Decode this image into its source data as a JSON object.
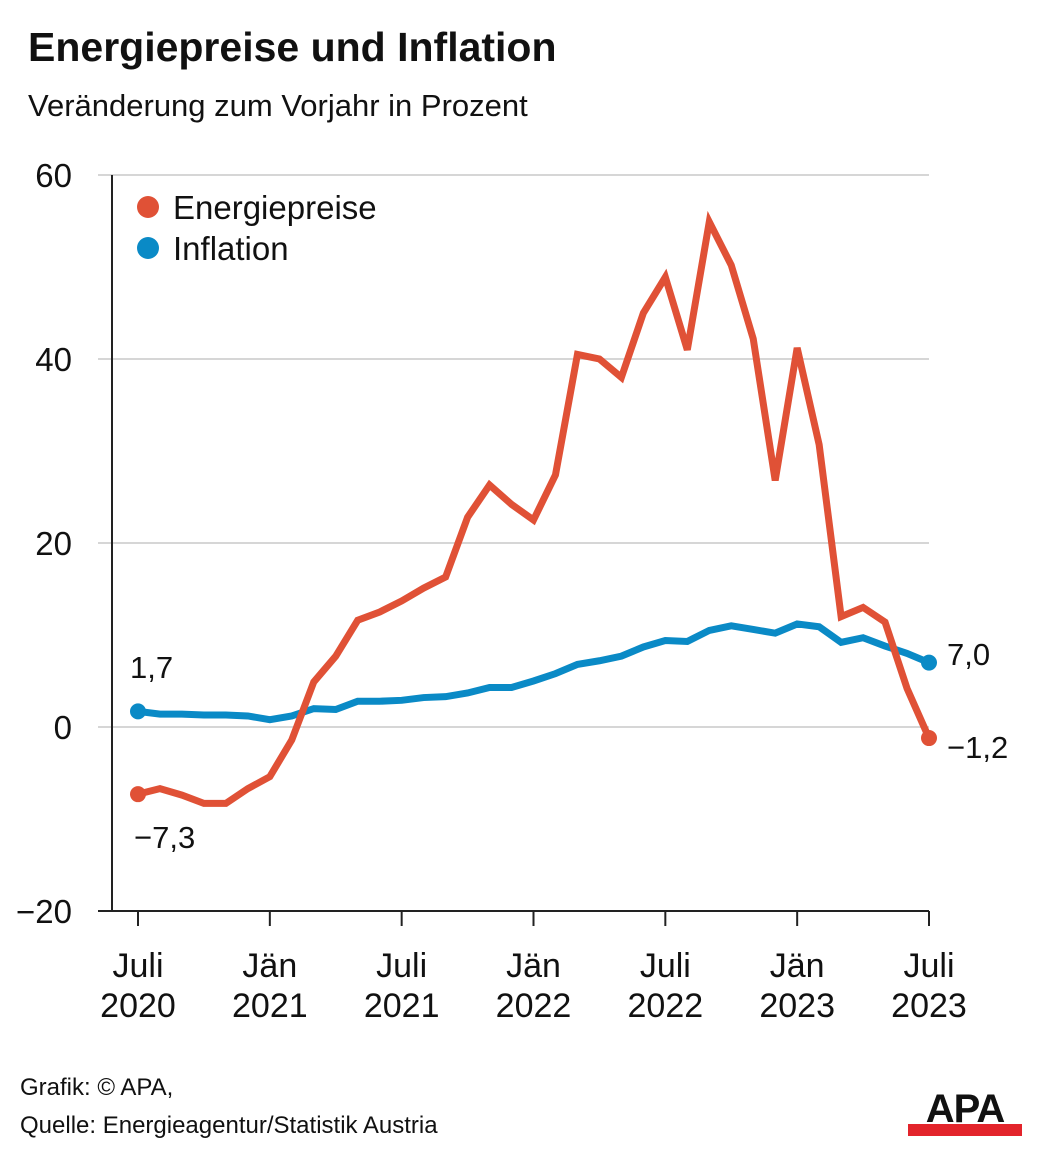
{
  "header": {
    "title": "Energiepreise und Inflation",
    "subtitle": "Veränderung zum Vorjahr in Prozent"
  },
  "footer": {
    "line1": "Grafik: © APA,",
    "line2": "Quelle: Energieagentur/Statistik Austria",
    "logo": "APA"
  },
  "chart_data": {
    "type": "line",
    "title": "Energiepreise und Inflation",
    "subtitle": "Veränderung zum Vorjahr in Prozent",
    "ylim": [
      -20,
      60
    ],
    "yticks": [
      {
        "v": 60,
        "label": "60"
      },
      {
        "v": 40,
        "label": "40"
      },
      {
        "v": 20,
        "label": "20"
      },
      {
        "v": 0,
        "label": "0"
      },
      {
        "v": -20,
        "label": "−20"
      }
    ],
    "xticks": [
      {
        "i": 0,
        "l1": "Juli",
        "l2": "2020"
      },
      {
        "i": 6,
        "l1": "Jän",
        "l2": "2021"
      },
      {
        "i": 12,
        "l1": "Juli",
        "l2": "2021"
      },
      {
        "i": 18,
        "l1": "Jän",
        "l2": "2022"
      },
      {
        "i": 24,
        "l1": "Juli",
        "l2": "2022"
      },
      {
        "i": 30,
        "l1": "Jän",
        "l2": "2023"
      },
      {
        "i": 36,
        "l1": "Juli",
        "l2": "2023"
      }
    ],
    "grid": true,
    "legend_position": "top-left",
    "series": [
      {
        "name": "Energiepreise",
        "color": "#e05136",
        "start_label": "−7,3",
        "end_label": "−1,2",
        "values": [
          -7.3,
          -6.7,
          -7.4,
          -8.3,
          -8.3,
          -6.7,
          -5.4,
          -1.4,
          4.9,
          7.7,
          11.6,
          12.5,
          13.7,
          15.1,
          16.3,
          22.8,
          26.3,
          24.2,
          22.5,
          27.4,
          40.5,
          40.0,
          38.0,
          45.0,
          48.9,
          41.0,
          54.9,
          50.2,
          42.2,
          26.8,
          41.2,
          30.7,
          12.0,
          13.0,
          11.4,
          4.2,
          -1.2
        ]
      },
      {
        "name": "Inflation",
        "color": "#0a8ac6",
        "start_label": "1,7",
        "end_label": "7,0",
        "values": [
          1.7,
          1.4,
          1.4,
          1.3,
          1.3,
          1.2,
          0.8,
          1.2,
          2.0,
          1.9,
          2.8,
          2.8,
          2.9,
          3.2,
          3.3,
          3.7,
          4.3,
          4.3,
          5.0,
          5.8,
          6.8,
          7.2,
          7.7,
          8.7,
          9.4,
          9.3,
          10.5,
          11.0,
          10.6,
          10.2,
          11.2,
          10.9,
          9.2,
          9.7,
          8.8,
          8.0,
          7.0
        ]
      }
    ]
  }
}
